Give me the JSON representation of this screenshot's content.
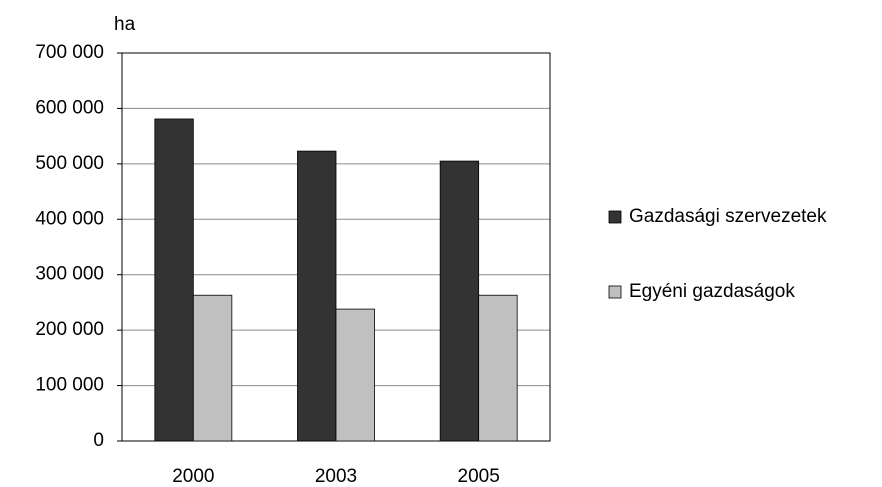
{
  "chart_data": {
    "type": "bar",
    "y_label": "ha",
    "categories": [
      "2000",
      "2003",
      "2005"
    ],
    "series": [
      {
        "name": "Gazdasági szervezetek",
        "color": "#333333",
        "values": [
          581000,
          523000,
          505000
        ]
      },
      {
        "name": "Egyéni gazdaságok",
        "color": "#c0c0c0",
        "values": [
          263000,
          238000,
          263000
        ]
      }
    ],
    "ylim": [
      0,
      700000
    ],
    "yticks": [
      0,
      {
        "value": 100000,
        "label": "100 000"
      },
      {
        "value": 200000,
        "label": "200 000"
      },
      {
        "value": 300000,
        "label": "300 000"
      },
      {
        "value": 400000,
        "label": "400 000"
      },
      {
        "value": 500000,
        "label": "500 000"
      },
      {
        "value": 600000,
        "label": "600 000"
      },
      {
        "value": 700000,
        "label": "700 000"
      }
    ],
    "grid": true,
    "legend": "right"
  }
}
